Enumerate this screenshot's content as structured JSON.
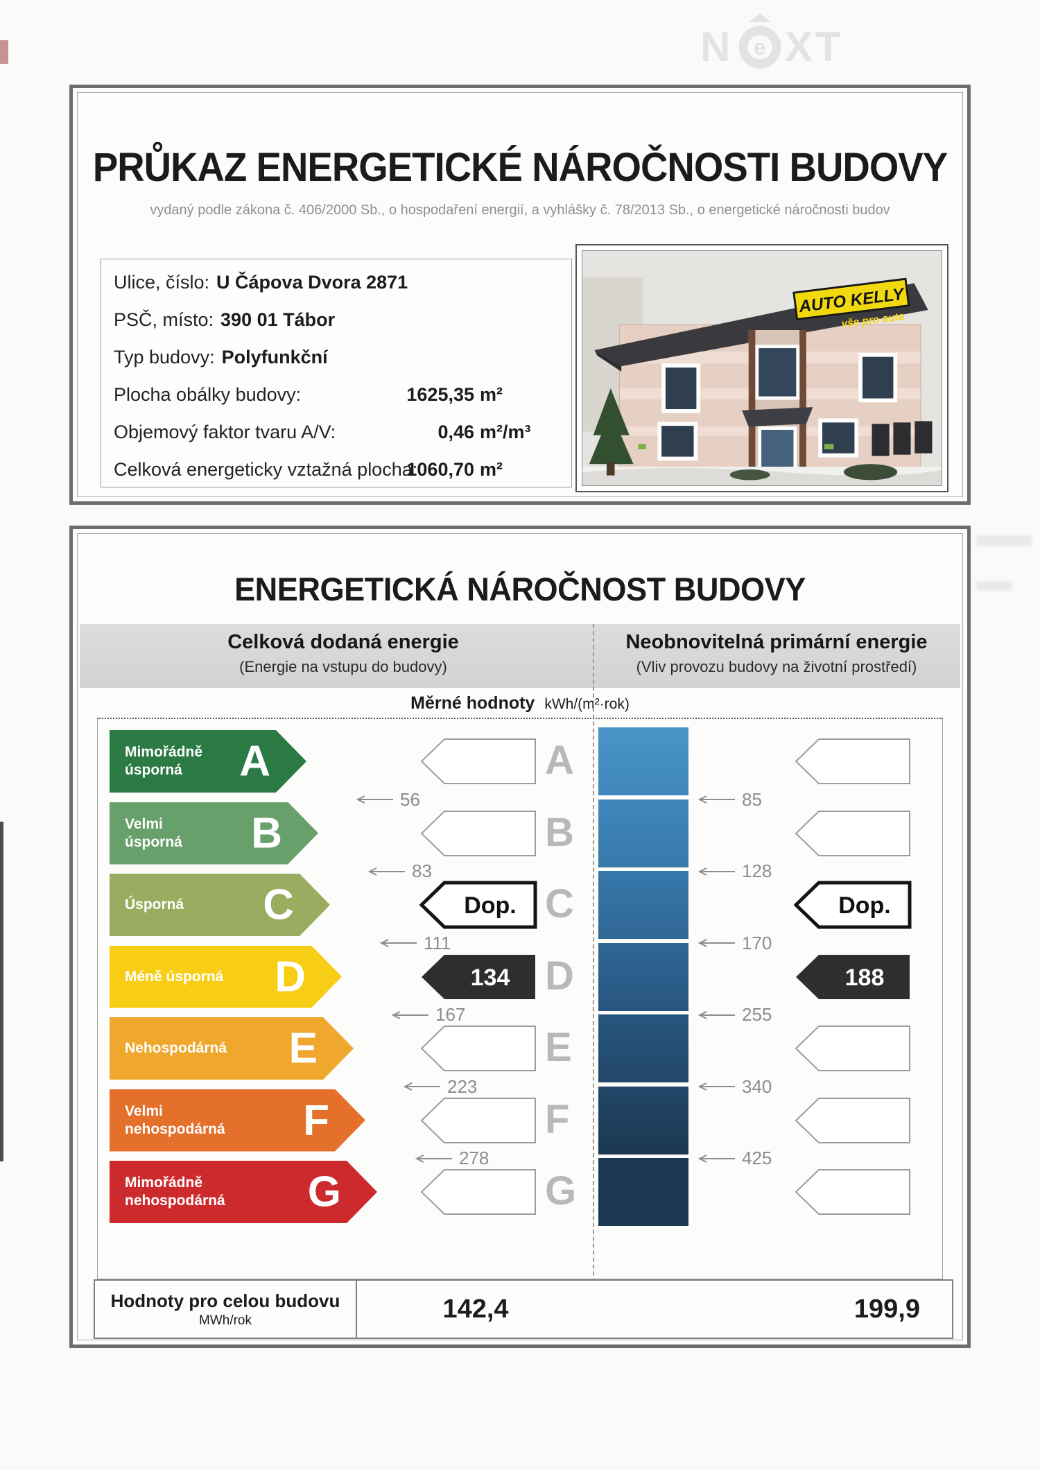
{
  "watermark": {
    "n": "N",
    "e": "e",
    "xt": "XT"
  },
  "cover": {
    "title": "PRŮKAZ ENERGETICKÉ NÁROČNOSTI BUDOVY",
    "subtitle": "vydaný podle zákona č. 406/2000 Sb., o hospodaření energií, a vyhlášky č. 78/2013 Sb., o energetické náročnosti budov",
    "info": [
      {
        "label": "Ulice, číslo:",
        "value": "U Čápova Dvora 2871",
        "unit": "",
        "layout": "inline"
      },
      {
        "label": "PSČ, místo:",
        "value": "390 01 Tábor",
        "unit": "",
        "layout": "inline"
      },
      {
        "label": "Typ budovy:",
        "value": "Polyfunkční",
        "unit": "",
        "layout": "inline"
      },
      {
        "label": "Plocha obálky budovy:",
        "value": "1625,35",
        "unit": "m²",
        "layout": "split"
      },
      {
        "label": "Objemový faktor tvaru A/V:",
        "value": "0,46",
        "unit": "m²/m³",
        "layout": "split"
      },
      {
        "label": "Celková energeticky vztažná plocha:",
        "value": "1060,70",
        "unit": "m²",
        "layout": "split"
      }
    ],
    "photo_sign_title": "AUTO KELLY",
    "photo_sign_sub": "vše pro auta"
  },
  "energy": {
    "title": "ENERGETICKÁ NÁROČNOST BUDOVY",
    "columns": {
      "left": {
        "title": "Celková dodaná energie",
        "subtitle": "(Energie na vstupu do budovy)"
      },
      "right": {
        "title": "Neobnovitelná primární energie",
        "subtitle": "(Vliv provozu budovy na životní prostředí)"
      }
    },
    "units_label": "Měrné hodnoty",
    "units": "kWh/(m²·rok)",
    "classes": [
      {
        "letter": "A",
        "label_lines": [
          "Mimořádně",
          "úsporná"
        ],
        "color": "#2b7a44"
      },
      {
        "letter": "B",
        "label_lines": [
          "Velmi",
          "úsporná"
        ],
        "color": "#67a06b"
      },
      {
        "letter": "C",
        "label_lines": [
          "Úsporná"
        ],
        "color": "#9aac60"
      },
      {
        "letter": "D",
        "label_lines": [
          "Méně úsporná"
        ],
        "color": "#f8cd15"
      },
      {
        "letter": "E",
        "label_lines": [
          "Nehospodárná"
        ],
        "color": "#f0a72e"
      },
      {
        "letter": "F",
        "label_lines": [
          "Velmi",
          "nehospodárná"
        ],
        "color": "#e4702b"
      },
      {
        "letter": "G",
        "label_lines": [
          "Mimořádně",
          "nehospodárná"
        ],
        "color": "#cd2a2e"
      }
    ],
    "blue_colors": [
      "#4a94c8",
      "#3f87bb",
      "#3878ab",
      "#2f6795",
      "#285680",
      "#224768",
      "#1c3852"
    ],
    "left_thresholds": [
      "56",
      "83",
      "111",
      "167",
      "223",
      "278"
    ],
    "right_thresholds": [
      "85",
      "128",
      "170",
      "255",
      "340",
      "425"
    ],
    "recommend_label": "Dop.",
    "recommend_class_index": 2,
    "value_class_index": 3,
    "left_value": "134",
    "right_value": "188",
    "totals": {
      "label": "Hodnoty pro celou budovu",
      "unit": "MWh/rok",
      "left": "142,4",
      "right": "199,9"
    }
  }
}
